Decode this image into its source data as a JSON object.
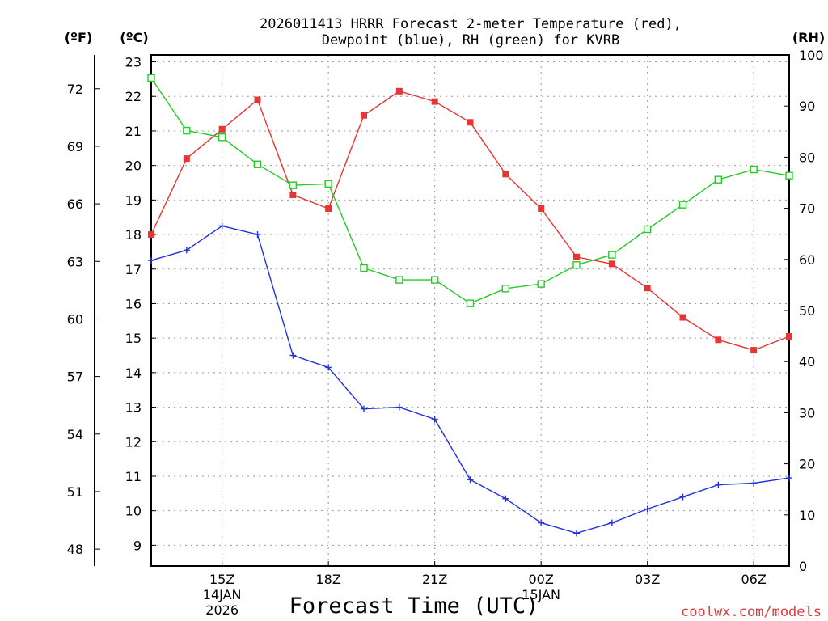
{
  "chart_data": {
    "type": "line",
    "title_line1": "2026011413 HRRR Forecast 2-meter Temperature (red),",
    "title_line2": "Dewpoint (blue), RH (green) for KVRB",
    "xlabel": "Forecast Time (UTC)",
    "credit": "coolwx.com/models",
    "unit_f": "(ºF)",
    "unit_c": "(ºC)",
    "unit_rh": "(RH)",
    "x_hours": [
      13,
      14,
      15,
      16,
      17,
      18,
      19,
      20,
      21,
      22,
      23,
      24,
      25,
      26,
      27,
      28,
      29,
      30,
      31
    ],
    "xlim": [
      13,
      31
    ],
    "ylim_c": [
      8.4,
      23.2
    ],
    "ylim_rh": [
      0,
      100
    ],
    "celsius_ticks": [
      "9",
      "10",
      "11",
      "12",
      "13",
      "14",
      "15",
      "16",
      "17",
      "18",
      "19",
      "20",
      "21",
      "22",
      "23"
    ],
    "fahrenheit_ticks": [
      "48",
      "51",
      "54",
      "57",
      "60",
      "63",
      "66",
      "69",
      "72"
    ],
    "rh_ticks": [
      "0",
      "10",
      "20",
      "30",
      "40",
      "50",
      "60",
      "70",
      "80",
      "90",
      "100"
    ],
    "x_ticks": [
      {
        "hour": 15,
        "label": "15Z",
        "sub1": "14JAN",
        "sub2": "2026"
      },
      {
        "hour": 18,
        "label": "18Z",
        "sub1": "",
        "sub2": ""
      },
      {
        "hour": 21,
        "label": "21Z",
        "sub1": "",
        "sub2": ""
      },
      {
        "hour": 24,
        "label": "00Z",
        "sub1": "15JAN",
        "sub2": ""
      },
      {
        "hour": 27,
        "label": "03Z",
        "sub1": "",
        "sub2": ""
      },
      {
        "hour": 30,
        "label": "06Z",
        "sub1": "",
        "sub2": ""
      }
    ],
    "series": [
      {
        "name": "Temperature",
        "color": "#e53535",
        "axis": "C",
        "marker": "filled-square",
        "values": [
          18.0,
          20.2,
          21.05,
          21.9,
          19.15,
          18.75,
          21.45,
          22.15,
          21.85,
          21.25,
          19.75,
          18.75,
          17.35,
          17.15,
          16.45,
          15.6,
          14.95,
          14.65,
          15.05
        ]
      },
      {
        "name": "Dewpoint",
        "color": "#2233dd",
        "axis": "C",
        "marker": "plus",
        "values": [
          17.25,
          17.55,
          18.25,
          18.0,
          14.5,
          14.15,
          12.95,
          13.0,
          12.65,
          10.9,
          10.35,
          9.65,
          9.35,
          9.65,
          10.05,
          10.4,
          10.75,
          10.8,
          10.95
        ]
      },
      {
        "name": "RH",
        "color": "#22cc22",
        "axis": "RH",
        "marker": "open-square",
        "values": [
          95.5,
          85.2,
          83.9,
          78.6,
          74.5,
          74.8,
          58.3,
          56.0,
          56.0,
          51.4,
          54.3,
          55.2,
          58.9,
          60.9,
          65.9,
          70.7,
          75.6,
          77.6,
          76.4
        ]
      }
    ]
  }
}
